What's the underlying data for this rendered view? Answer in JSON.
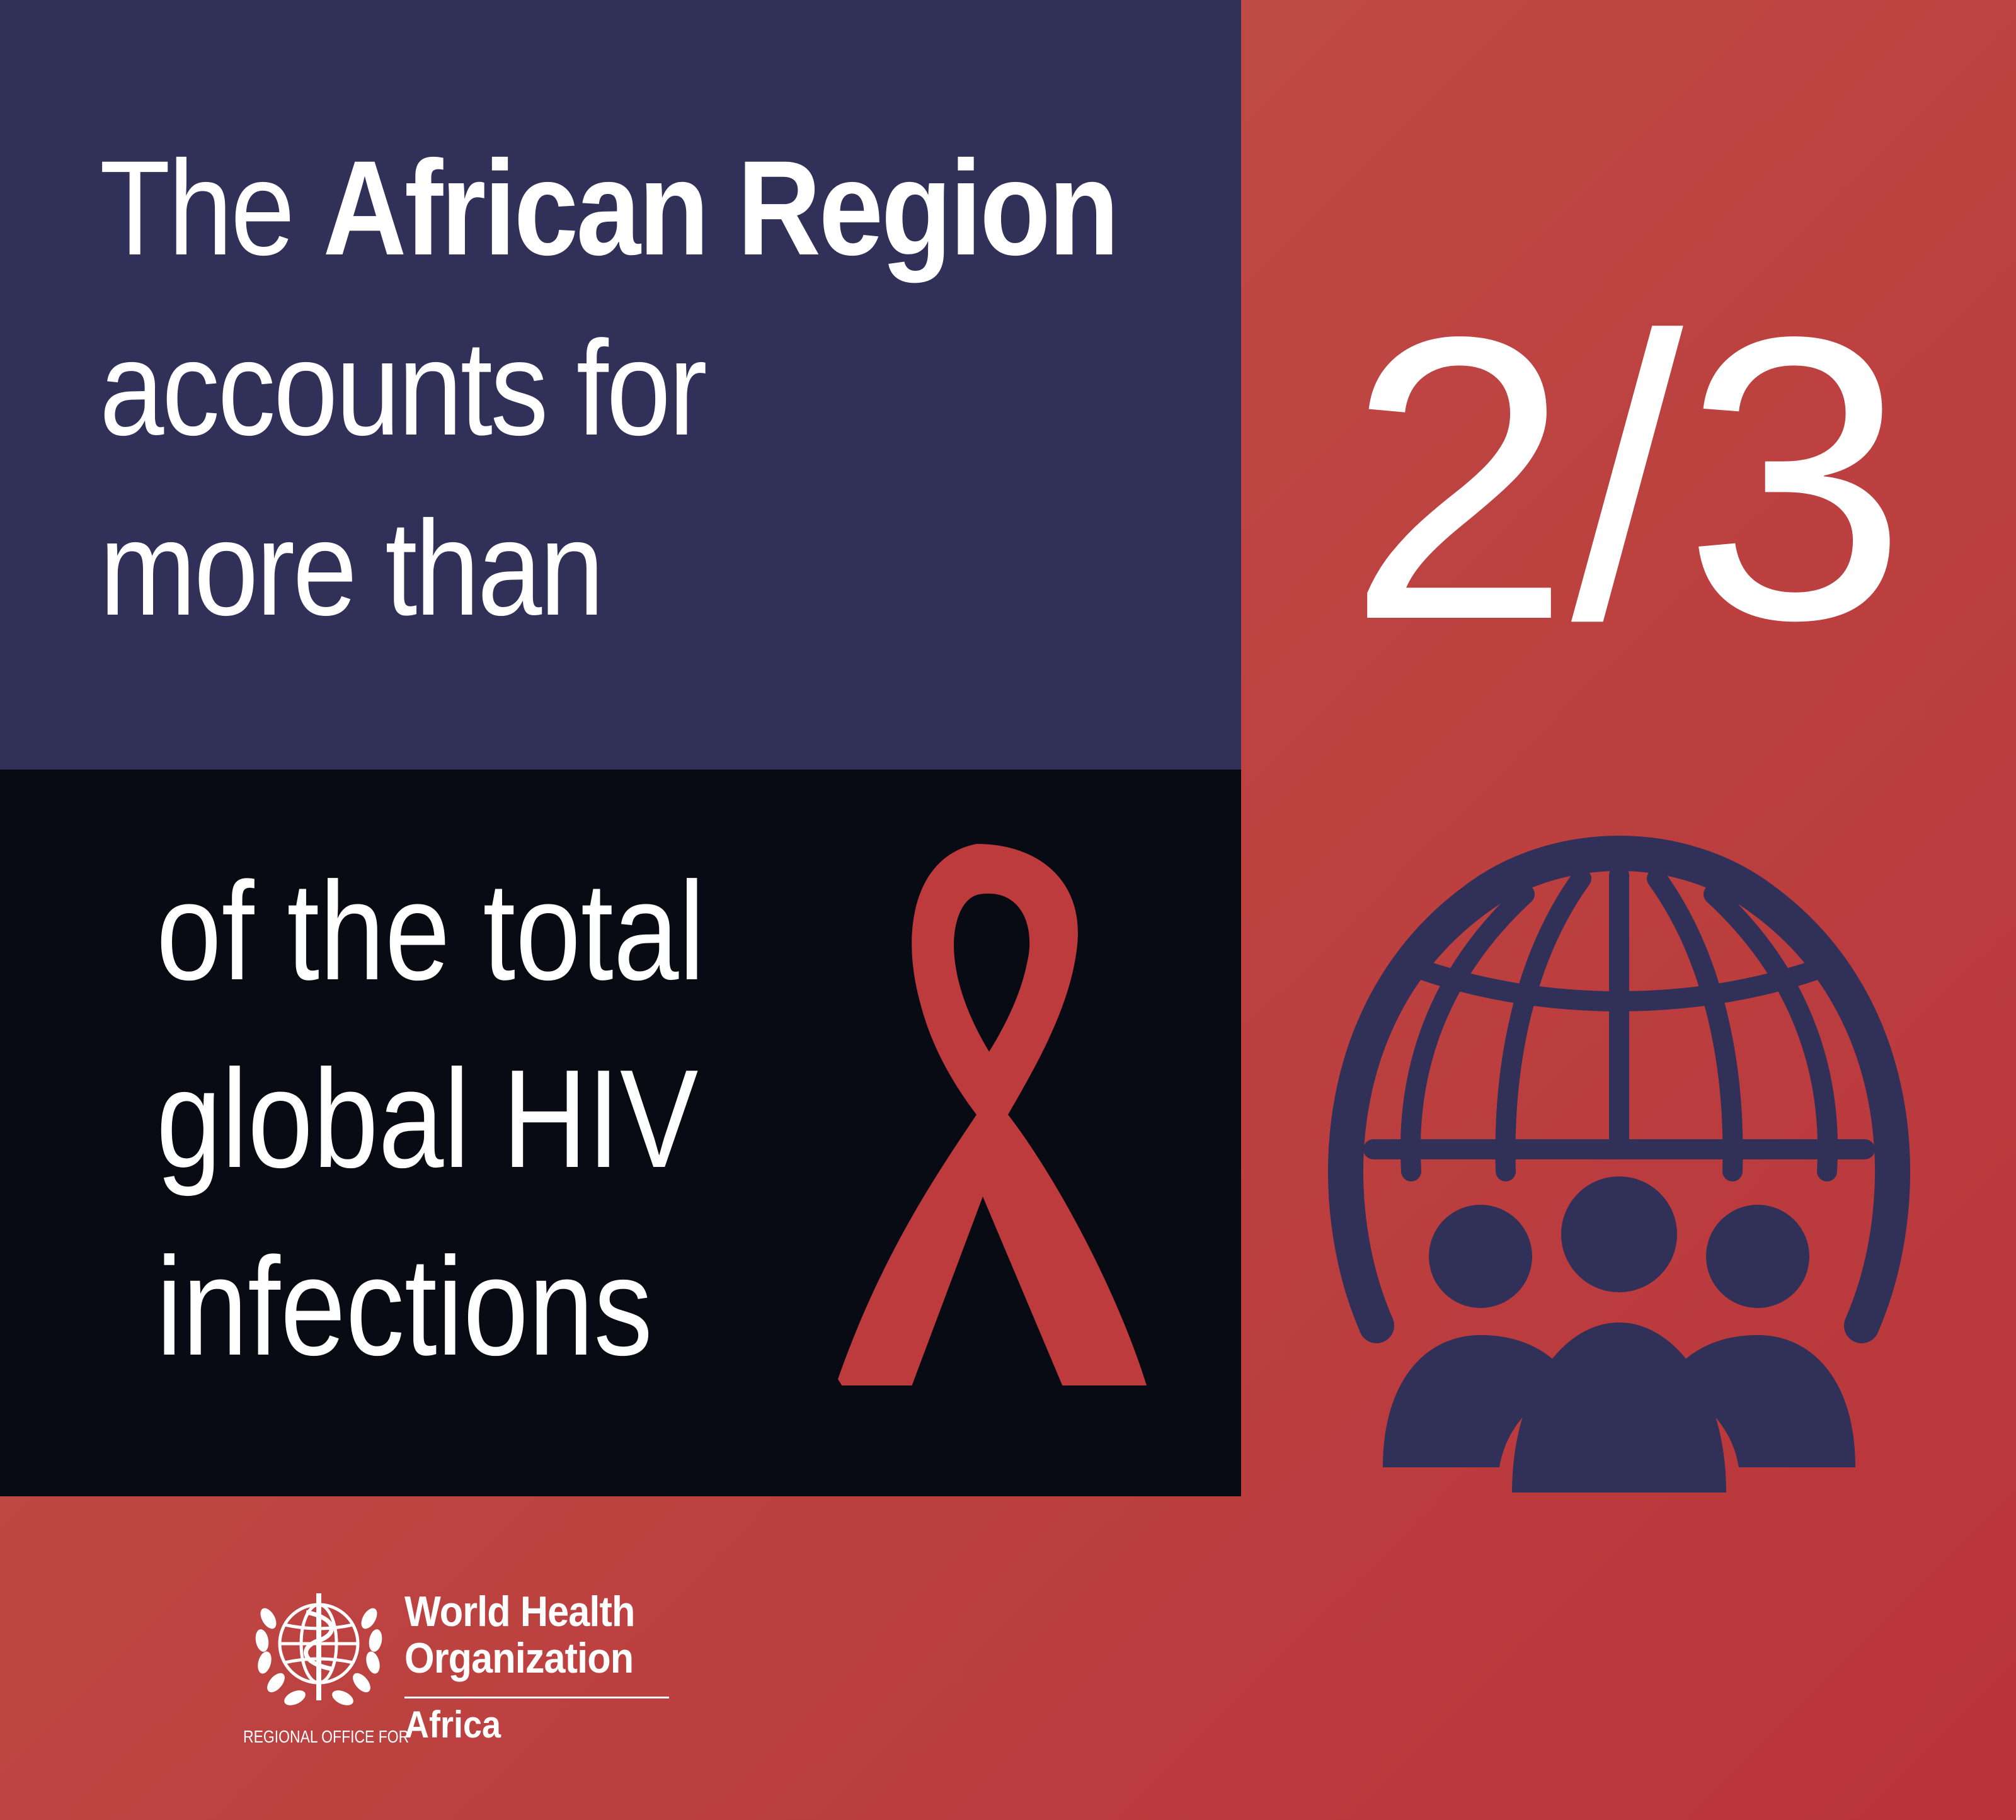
{
  "headline": {
    "prefix": "The",
    "region": "African Region",
    "line2": "accounts for",
    "line3": "more than"
  },
  "statistic": {
    "value": "2/3"
  },
  "subtext": {
    "line1": "of the total",
    "line2": "global HIV",
    "line3": "infections"
  },
  "logo": {
    "name_line1": "World Health",
    "name_line2": "Organization",
    "regional_office": "REGIONAL OFFICE FOR",
    "region": "Africa"
  },
  "icons": {
    "ribbon": "red-ribbon-icon",
    "globe": "globe-people-icon",
    "emblem": "who-emblem-icon"
  },
  "colors": {
    "navy": "#303058",
    "black": "#090b14",
    "red": "#bd3a3d",
    "white": "#ffffff"
  }
}
